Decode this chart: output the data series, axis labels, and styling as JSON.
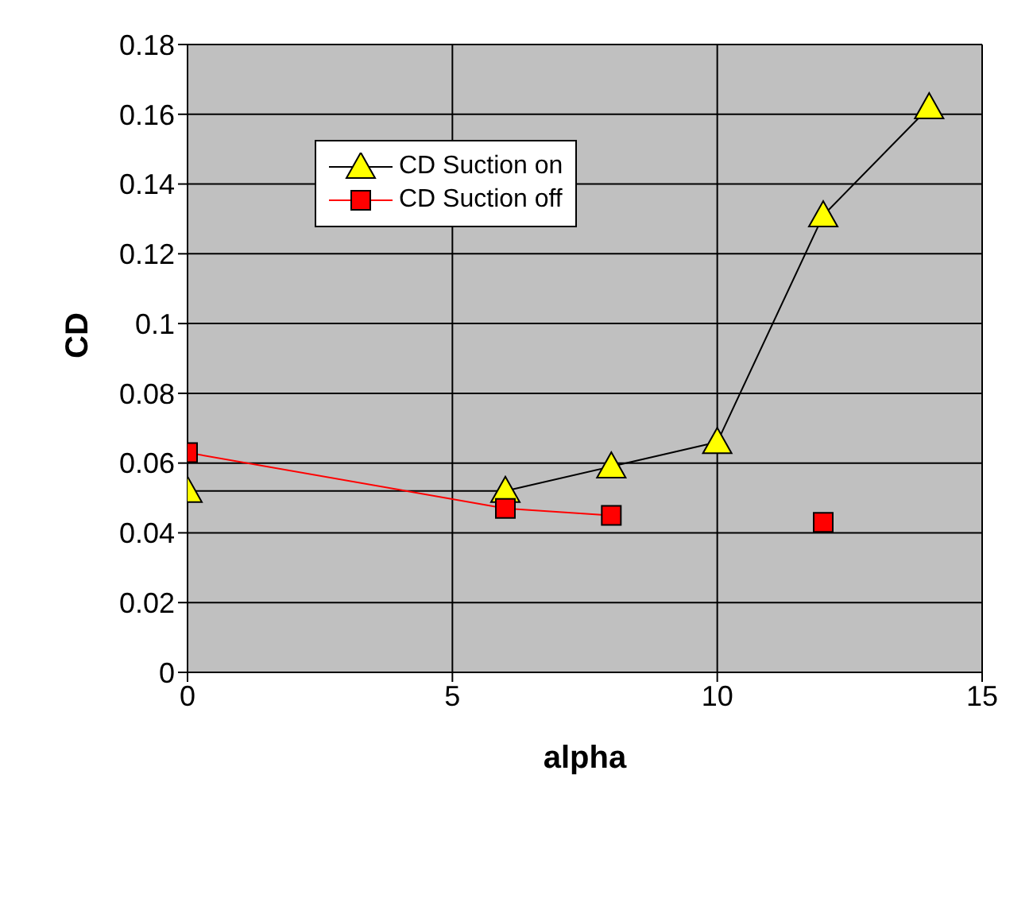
{
  "chart_data": {
    "type": "line",
    "xlabel": "alpha",
    "ylabel": "CD",
    "x": [
      0,
      6,
      8,
      10,
      12,
      14
    ],
    "series": [
      {
        "name": "CD Suction on",
        "color": "#ffff00",
        "marker": "triangle",
        "values": [
          0.052,
          0.052,
          0.059,
          0.066,
          0.131,
          0.162
        ]
      },
      {
        "name": "CD Suction off",
        "color": "#ff0000",
        "marker": "square",
        "values": [
          0.063,
          0.047,
          0.045,
          null,
          0.043,
          null
        ]
      }
    ],
    "xlim": [
      0,
      15
    ],
    "xticks": [
      0,
      5,
      10,
      15
    ],
    "ylim": [
      0,
      0.18
    ],
    "yticks": [
      0,
      0.02,
      0.04,
      0.06,
      0.08,
      0.1,
      0.12,
      0.14,
      0.16,
      0.18
    ],
    "grid": true,
    "legend": "top left"
  }
}
